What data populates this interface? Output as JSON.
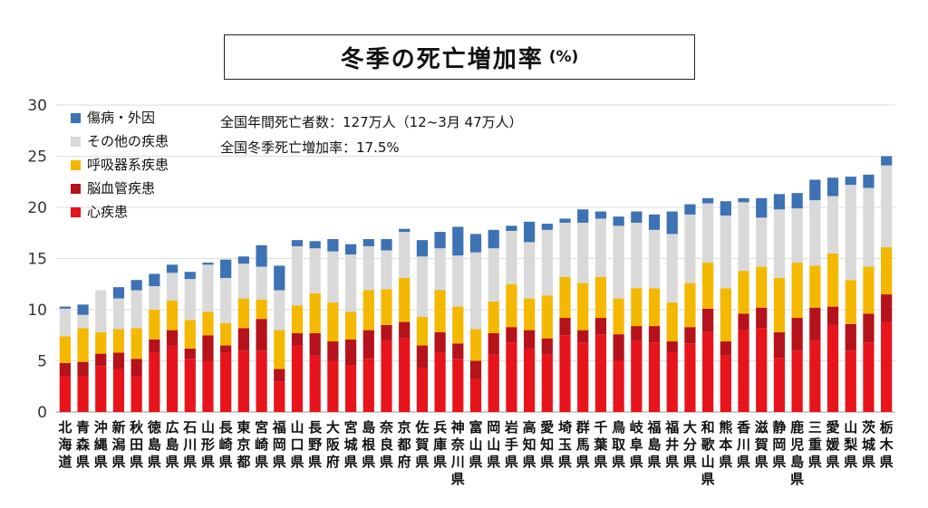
{
  "title": "冬季の死亡増加率",
  "title_unit": "(%)",
  "notes": [
    "全国年間死亡者数：127万人（12~3月 47万人）",
    "全国冬季死亡増加率：17.5%"
  ],
  "chart_data": {
    "type": "bar",
    "stacked": true,
    "ylim": [
      0,
      30
    ],
    "yticks": [
      0,
      5,
      10,
      15,
      20,
      25,
      30
    ],
    "grid": true,
    "legend_position": "top-left",
    "categories": [
      "北海道",
      "青森県",
      "沖縄県",
      "新潟県",
      "秋田県",
      "徳島県",
      "広島県",
      "石川県",
      "山形県",
      "長崎県",
      "東京都",
      "宮崎県",
      "福岡県",
      "山口県",
      "長野県",
      "大阪府",
      "宮城県",
      "島根県",
      "奈良県",
      "京都府",
      "佐賀県",
      "兵庫県",
      "神奈川県",
      "富山県",
      "岡山県",
      "岩手県",
      "高知県",
      "愛知県",
      "埼玉県",
      "群馬県",
      "千葉県",
      "鳥取県",
      "岐阜県",
      "福島県",
      "福井県",
      "大分県",
      "和歌山県",
      "熊本県",
      "香川県",
      "滋賀県",
      "静岡県",
      "鹿児島県",
      "三重県",
      "愛媛県",
      "山梨県",
      "茨城県",
      "栃木県"
    ],
    "highlight_category": "北海道",
    "highlight_color": "#a51c30",
    "series": [
      {
        "name": "心疾患",
        "color": "#e8141b",
        "values": [
          3.5,
          3.5,
          4.5,
          4.2,
          3.5,
          5.8,
          6.5,
          5.2,
          5.0,
          5.8,
          6.0,
          6.0,
          3.0,
          6.5,
          5.5,
          5.0,
          4.6,
          5.2,
          7.0,
          7.2,
          4.3,
          5.8,
          5.2,
          3.2,
          5.6,
          6.8,
          6.2,
          5.6,
          7.5,
          6.8,
          7.6,
          5.0,
          7.0,
          6.8,
          5.8,
          6.7,
          7.8,
          5.5,
          8.0,
          8.2,
          5.3,
          6.0,
          7.0,
          8.5,
          6.0,
          6.8,
          8.8
        ]
      },
      {
        "name": "脳血管疾患",
        "color": "#b5121b",
        "values": [
          1.3,
          1.4,
          1.2,
          1.6,
          1.7,
          1.3,
          1.5,
          1.0,
          2.5,
          0.7,
          2.2,
          3.1,
          1.2,
          1.2,
          2.2,
          1.9,
          2.5,
          2.8,
          1.5,
          1.6,
          2.2,
          2.0,
          1.5,
          1.8,
          2.1,
          1.5,
          1.8,
          1.6,
          1.7,
          1.2,
          1.6,
          2.6,
          1.4,
          1.6,
          1.1,
          1.6,
          2.3,
          1.4,
          1.6,
          2.0,
          2.5,
          3.2,
          3.2,
          1.8,
          2.6,
          2.8,
          2.7
        ]
      },
      {
        "name": "呼吸器系疾患",
        "color": "#f5b800",
        "values": [
          2.6,
          3.3,
          2.1,
          2.3,
          3.0,
          2.9,
          2.9,
          2.8,
          2.3,
          2.2,
          2.9,
          1.9,
          3.8,
          2.7,
          3.9,
          3.8,
          2.7,
          3.9,
          3.5,
          4.3,
          2.8,
          4.1,
          3.6,
          3.1,
          3.1,
          4.2,
          3.1,
          4.2,
          4.0,
          4.6,
          4.0,
          3.5,
          3.7,
          3.7,
          3.8,
          4.3,
          4.5,
          5.2,
          4.2,
          4.0,
          5.3,
          5.4,
          4.1,
          5.2,
          4.3,
          4.6,
          4.6
        ]
      },
      {
        "name": "その他の疾患",
        "color": "#d9d9d9",
        "values": [
          2.7,
          1.3,
          4.1,
          3.0,
          3.7,
          2.3,
          2.7,
          4.0,
          4.6,
          4.4,
          3.4,
          3.2,
          3.9,
          5.8,
          4.4,
          5.0,
          5.6,
          4.3,
          3.8,
          4.5,
          5.9,
          4.1,
          5.0,
          7.5,
          5.2,
          5.2,
          5.5,
          6.4,
          5.3,
          5.9,
          5.7,
          7.1,
          6.4,
          5.7,
          6.7,
          6.7,
          5.8,
          7.1,
          6.7,
          4.8,
          6.7,
          5.3,
          6.4,
          5.6,
          9.3,
          7.7,
          8.0
        ]
      },
      {
        "name": "傷病・外因",
        "color": "#3d72b4",
        "values": [
          0.2,
          1.0,
          0.0,
          1.1,
          1.0,
          1.2,
          0.8,
          0.7,
          0.2,
          1.8,
          0.7,
          2.1,
          2.4,
          0.6,
          0.7,
          1.2,
          1.0,
          0.7,
          1.1,
          0.3,
          1.6,
          1.6,
          2.8,
          1.8,
          1.8,
          0.5,
          2.0,
          0.6,
          0.4,
          1.3,
          0.7,
          0.9,
          1.1,
          1.5,
          2.2,
          1.0,
          0.5,
          1.4,
          0.4,
          1.9,
          1.5,
          1.5,
          2.0,
          1.8,
          0.8,
          1.3,
          0.9
        ]
      }
    ]
  }
}
